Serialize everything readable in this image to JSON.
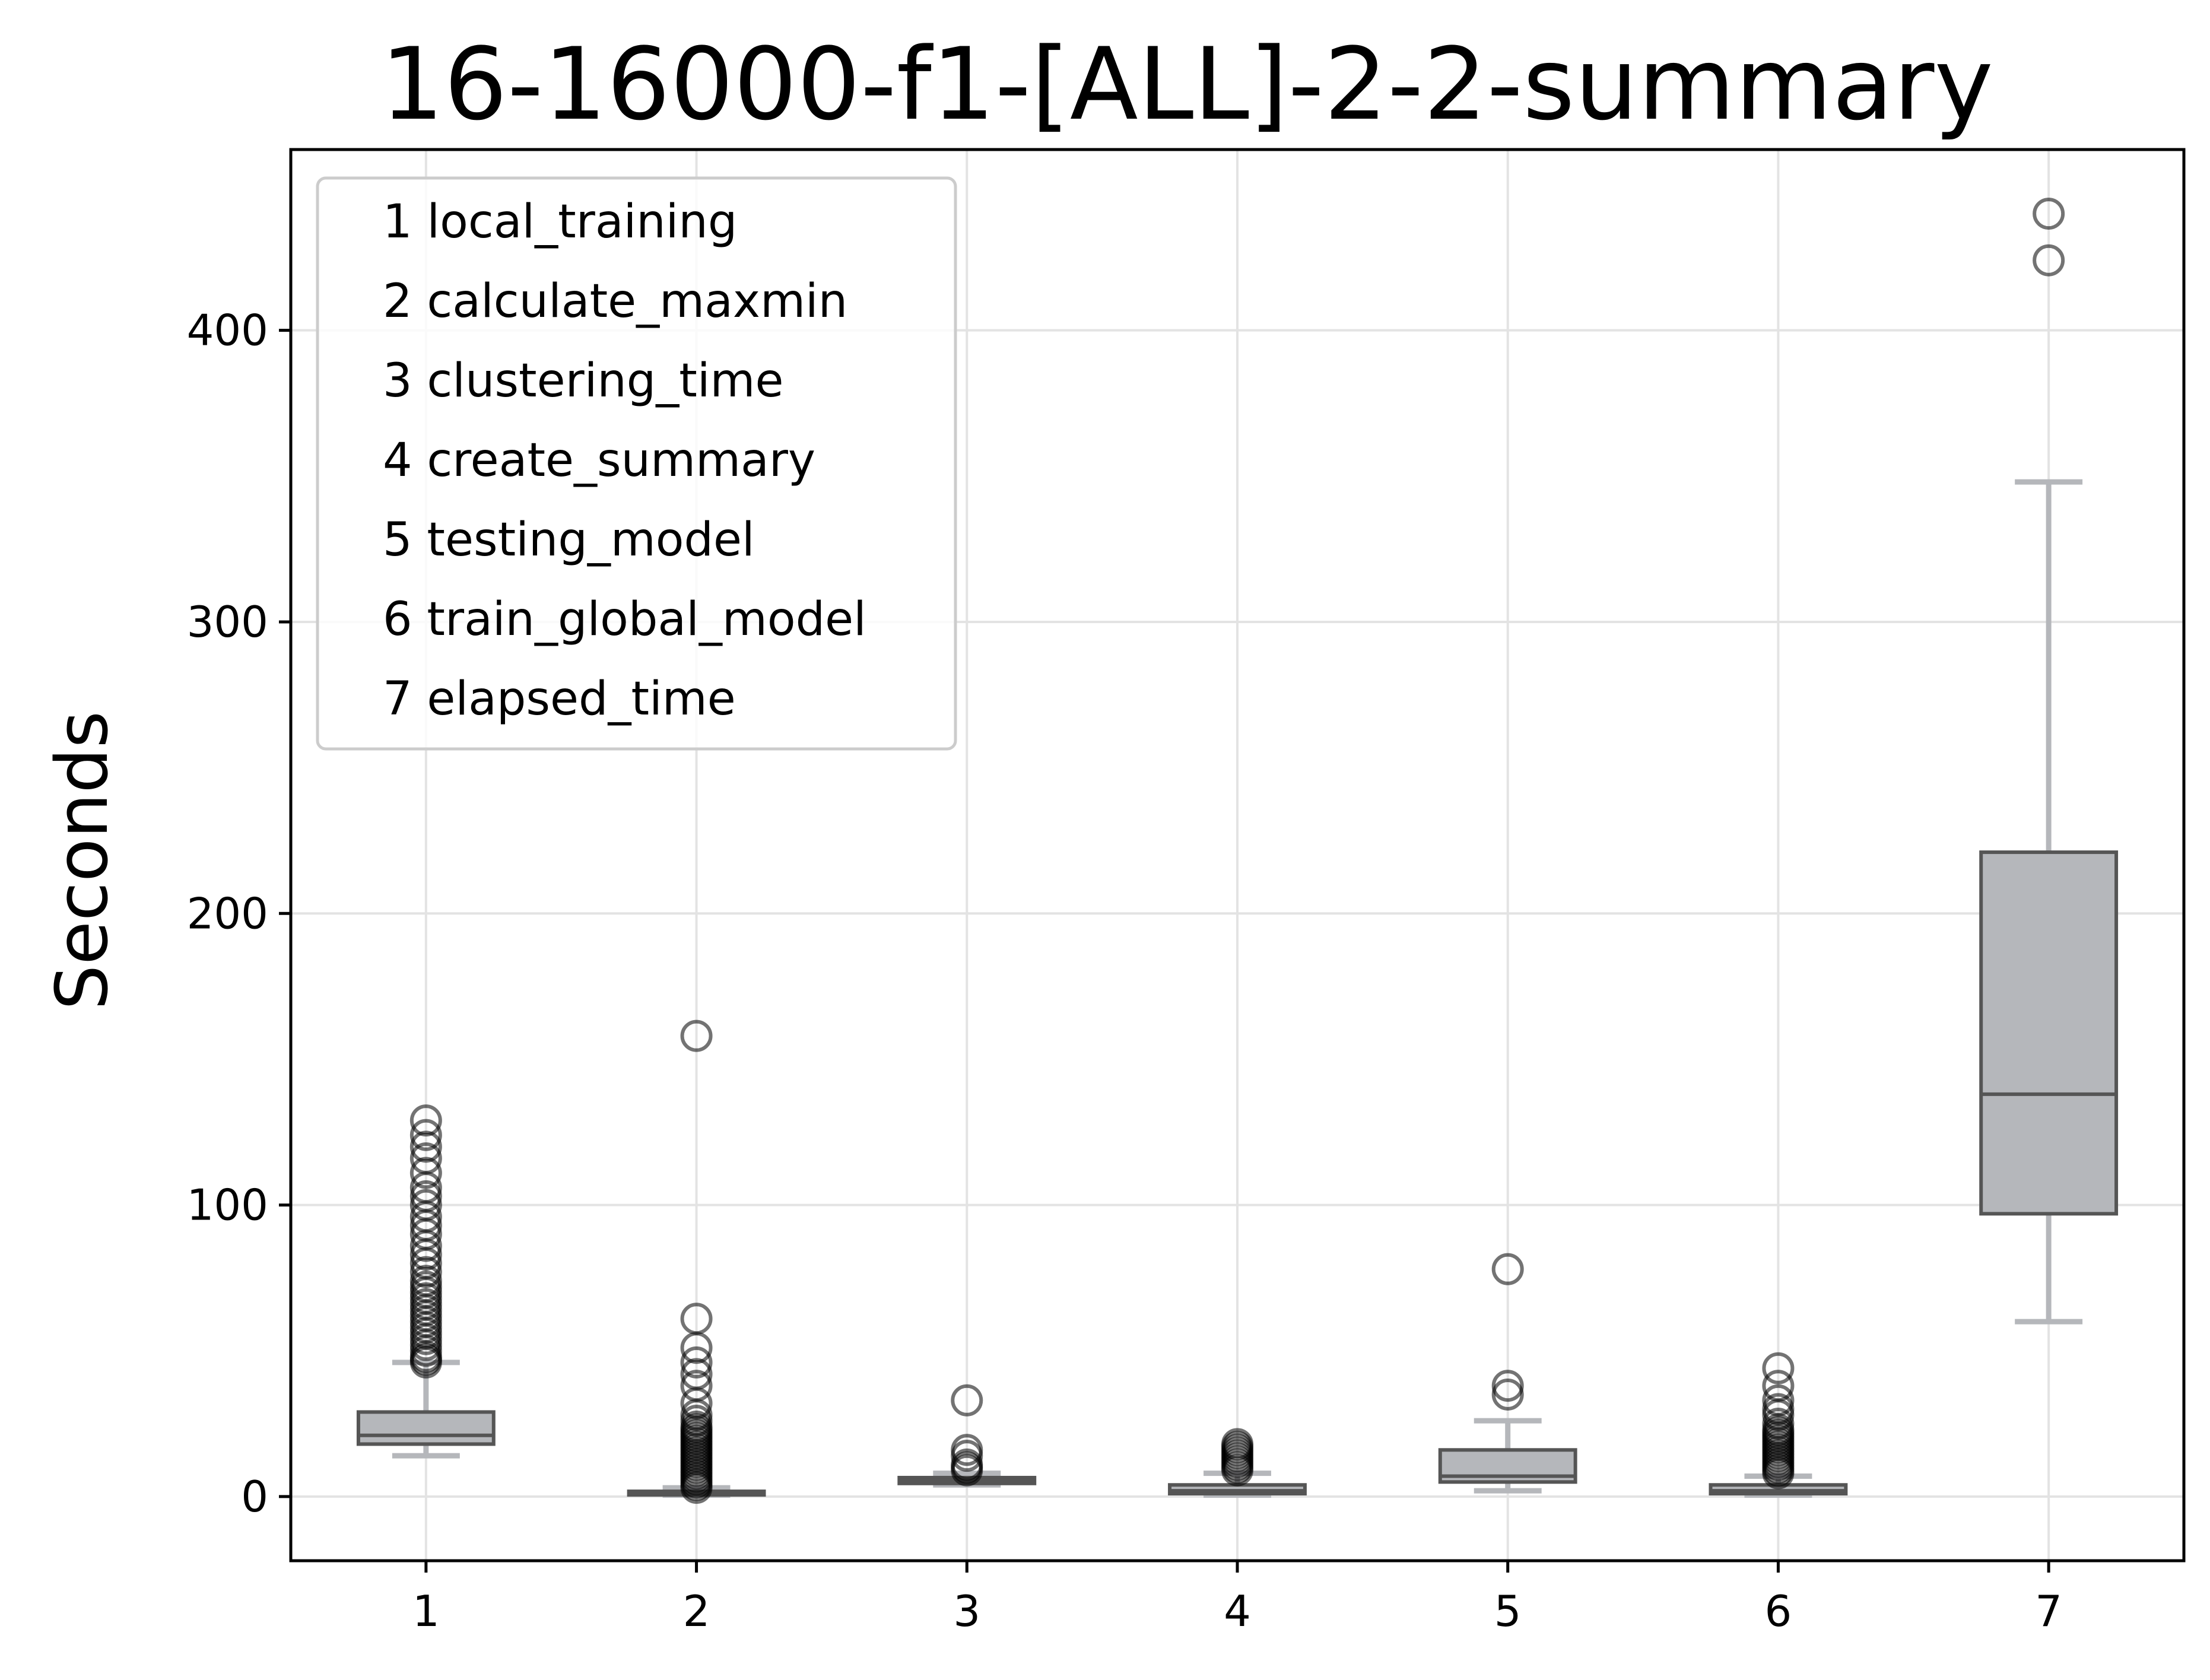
{
  "chart_data": {
    "type": "box",
    "title": "16-16000-f1-[ALL]-2-2-summary",
    "xlabel": "",
    "ylabel": "Seconds",
    "ylim": [
      -22,
      462
    ],
    "xlim": [
      0.5,
      7.5
    ],
    "yticks": [
      0,
      100,
      200,
      300,
      400
    ],
    "grid": true,
    "legend_position": "top-left",
    "colors": {
      "box_fill": "#b5b7bb",
      "box_edge": "#555555",
      "whisker": "#b5b7bb",
      "outlier": "#000000"
    },
    "categories": [
      "1",
      "2",
      "3",
      "4",
      "5",
      "6",
      "7"
    ],
    "legend": [
      "1 local_training",
      "2 calculate_maxmin",
      "3 clustering_time",
      "4 create_summary",
      "5 testing_model",
      "6 train_global_model",
      "7 elapsed_time"
    ],
    "boxes": [
      {
        "name": "local_training",
        "whislo": 14,
        "q1": 18,
        "med": 21,
        "q3": 29,
        "whishi": 46,
        "fliers": [
          46,
          47,
          48,
          50,
          52,
          54,
          56,
          58,
          60,
          62,
          64,
          66,
          68,
          70,
          72,
          74,
          77,
          80,
          83,
          86,
          90,
          93,
          96,
          100,
          103,
          106,
          111,
          116,
          120,
          124,
          129
        ]
      },
      {
        "name": "calculate_maxmin",
        "whislo": 0.5,
        "q1": 0.8,
        "med": 1.2,
        "q3": 1.8,
        "whishi": 3,
        "fliers": [
          3,
          4,
          5,
          6,
          7,
          8,
          9,
          10,
          11,
          12,
          13,
          14,
          15,
          16,
          17,
          18,
          19,
          20,
          21,
          22,
          23,
          24,
          26,
          28,
          32,
          38,
          42,
          46,
          51,
          61,
          158
        ]
      },
      {
        "name": "clustering_time",
        "whislo": 4,
        "q1": 4.5,
        "med": 5.5,
        "q3": 6.5,
        "whishi": 8,
        "fliers": [
          9,
          10,
          11,
          14,
          16,
          33
        ]
      },
      {
        "name": "create_summary",
        "whislo": 0.5,
        "q1": 1,
        "med": 2,
        "q3": 4,
        "whishi": 8,
        "fliers": [
          9,
          10,
          11,
          12,
          13,
          14,
          15,
          16,
          17,
          18
        ]
      },
      {
        "name": "testing_model",
        "whislo": 2,
        "q1": 5,
        "med": 7,
        "q3": 16,
        "whishi": 26,
        "fliers": [
          35,
          38,
          78
        ]
      },
      {
        "name": "train_global_model",
        "whislo": 0.5,
        "q1": 1,
        "med": 2,
        "q3": 4,
        "whishi": 7,
        "fliers": [
          8,
          9,
          10,
          11,
          12,
          13,
          14,
          15,
          16,
          17,
          18,
          19,
          20,
          21,
          22,
          23,
          25,
          28,
          30,
          33,
          38,
          44
        ]
      },
      {
        "name": "elapsed_time",
        "whislo": 60,
        "q1": 97,
        "med": 138,
        "q3": 221,
        "whishi": 348,
        "fliers": [
          424,
          440
        ]
      }
    ]
  }
}
